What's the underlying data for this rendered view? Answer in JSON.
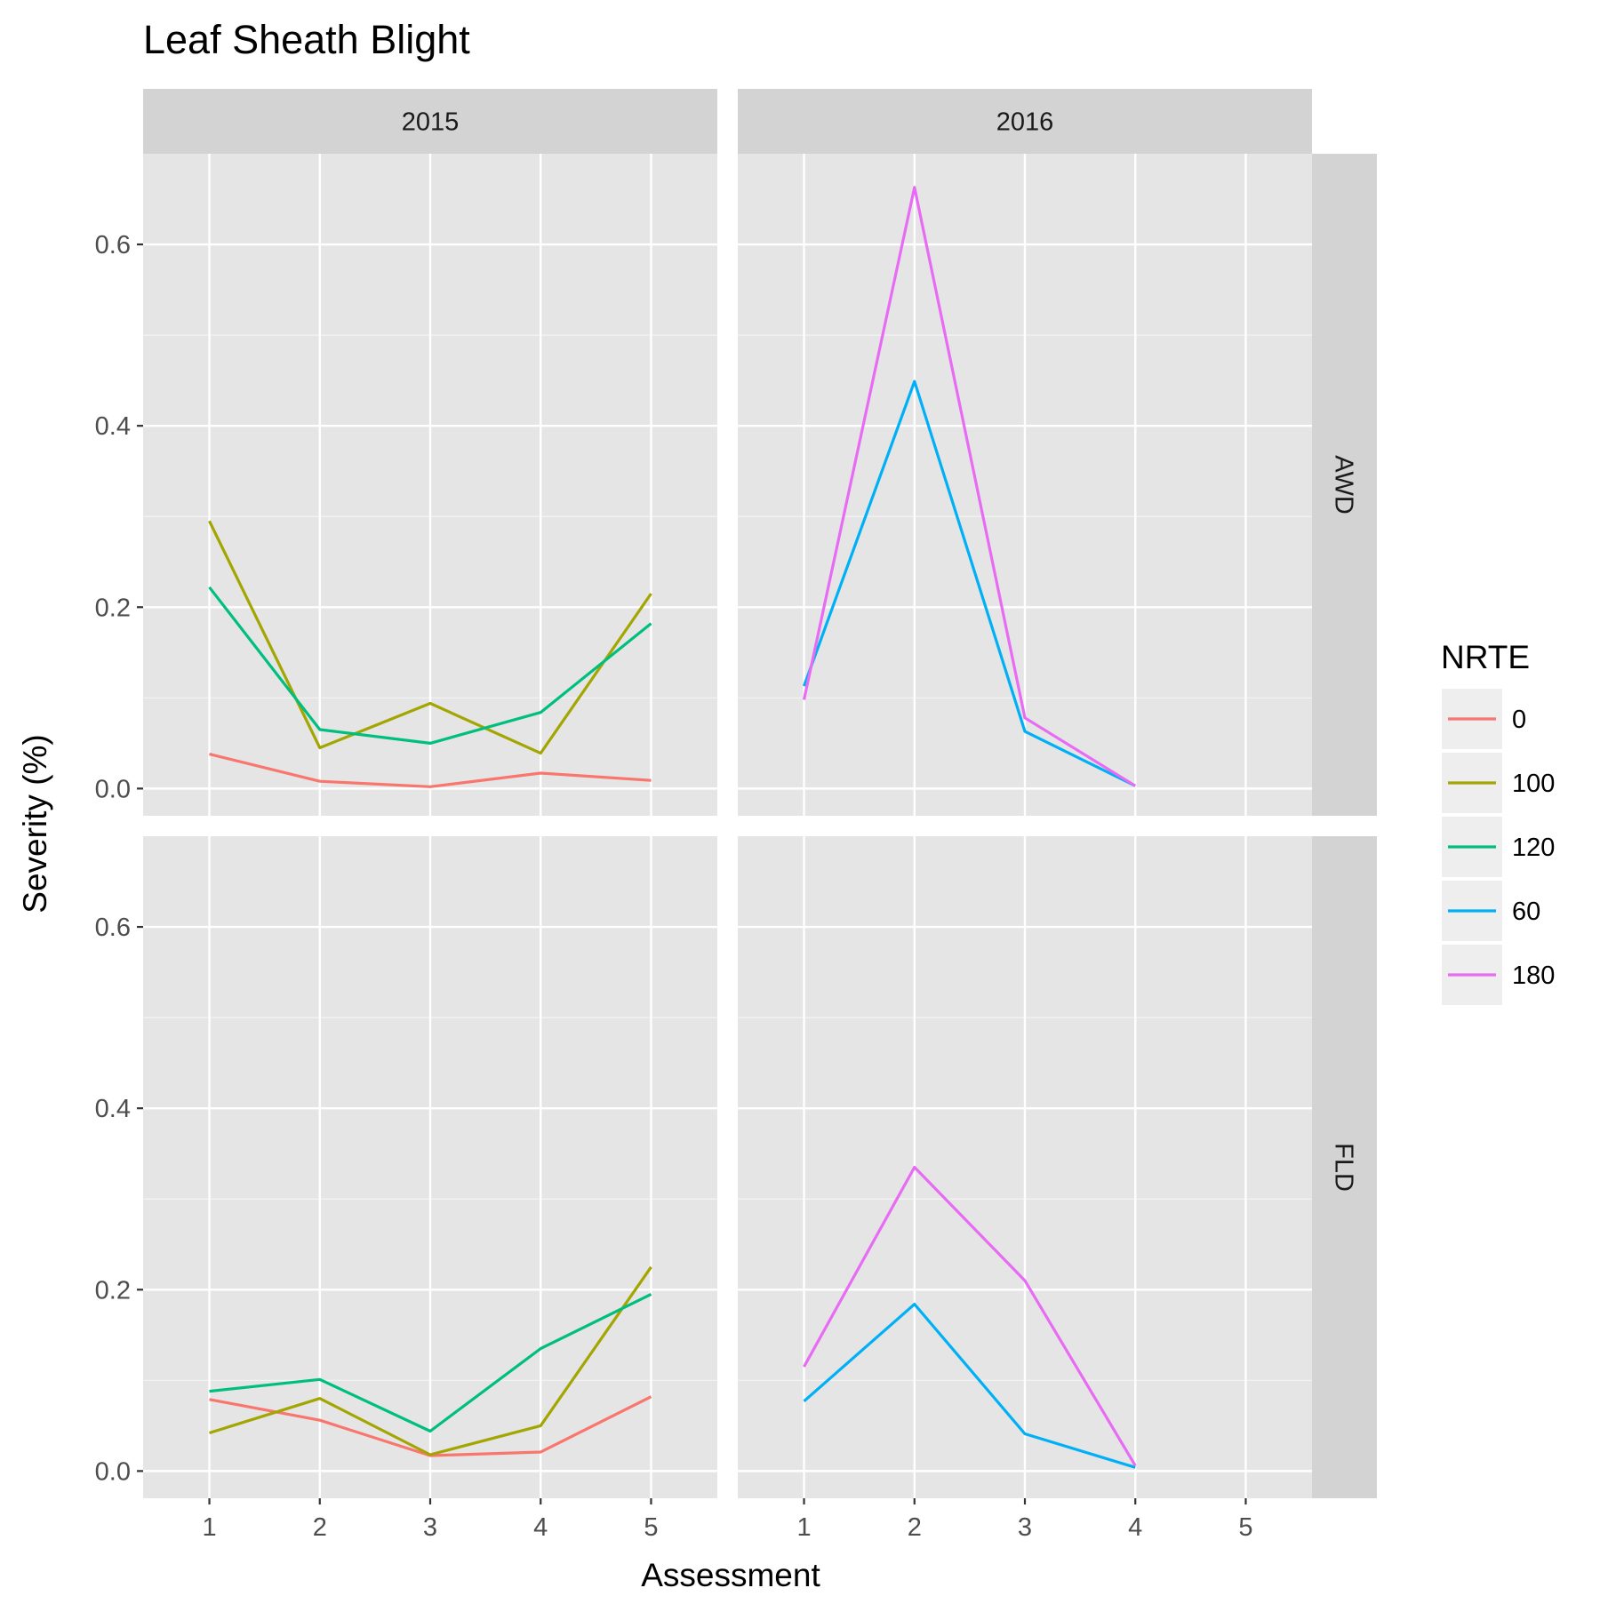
{
  "chart_data": {
    "type": "line",
    "title": "Leaf Sheath Blight",
    "xlabel": "Assessment",
    "ylabel": "Severity (%)",
    "x_ticks": [
      "1",
      "2",
      "3",
      "4",
      "5"
    ],
    "y_ticks": [
      "0.0",
      "0.2",
      "0.4",
      "0.6"
    ],
    "xlim": [
      0.4,
      5.6
    ],
    "ylim": [
      -0.03,
      0.7
    ],
    "grid": true,
    "legend": {
      "title": "NRTE",
      "position": "right",
      "entries": [
        {
          "label": "0",
          "color": "#F8766D"
        },
        {
          "label": "100",
          "color": "#A3A500"
        },
        {
          "label": "120",
          "color": "#00BF7D"
        },
        {
          "label": "60",
          "color": "#00B0F6"
        },
        {
          "label": "180",
          "color": "#E76BF3"
        }
      ]
    },
    "facet_columns": [
      "2015",
      "2016"
    ],
    "facet_rows": [
      "AWD",
      "FLD"
    ],
    "panels": [
      {
        "col": "2015",
        "row": "AWD",
        "series": [
          {
            "name": "0",
            "x": [
              1,
              2,
              3,
              4,
              5
            ],
            "y": [
              0.038,
              0.008,
              0.002,
              0.017,
              0.009
            ]
          },
          {
            "name": "100",
            "x": [
              1,
              2,
              3,
              4,
              5
            ],
            "y": [
              0.295,
              0.045,
              0.094,
              0.039,
              0.215
            ]
          },
          {
            "name": "120",
            "x": [
              1,
              2,
              3,
              4,
              5
            ],
            "y": [
              0.222,
              0.065,
              0.05,
              0.084,
              0.182
            ]
          }
        ]
      },
      {
        "col": "2016",
        "row": "AWD",
        "series": [
          {
            "name": "60",
            "x": [
              1,
              2,
              3,
              4
            ],
            "y": [
              0.113,
              0.449,
              0.063,
              0.003
            ]
          },
          {
            "name": "180",
            "x": [
              1,
              2,
              3,
              4
            ],
            "y": [
              0.098,
              0.663,
              0.078,
              0.003
            ]
          }
        ]
      },
      {
        "col": "2015",
        "row": "FLD",
        "series": [
          {
            "name": "0",
            "x": [
              1,
              2,
              3,
              4,
              5
            ],
            "y": [
              0.079,
              0.056,
              0.017,
              0.021,
              0.082
            ]
          },
          {
            "name": "100",
            "x": [
              1,
              2,
              3,
              4,
              5
            ],
            "y": [
              0.042,
              0.08,
              0.018,
              0.05,
              0.225
            ]
          },
          {
            "name": "120",
            "x": [
              1,
              2,
              3,
              4,
              5
            ],
            "y": [
              0.088,
              0.101,
              0.044,
              0.135,
              0.195
            ]
          }
        ]
      },
      {
        "col": "2016",
        "row": "FLD",
        "series": [
          {
            "name": "60",
            "x": [
              1,
              2,
              3,
              4
            ],
            "y": [
              0.077,
              0.184,
              0.041,
              0.004
            ]
          },
          {
            "name": "180",
            "x": [
              1,
              2,
              3,
              4
            ],
            "y": [
              0.115,
              0.335,
              0.21,
              0.006
            ]
          }
        ]
      }
    ]
  }
}
